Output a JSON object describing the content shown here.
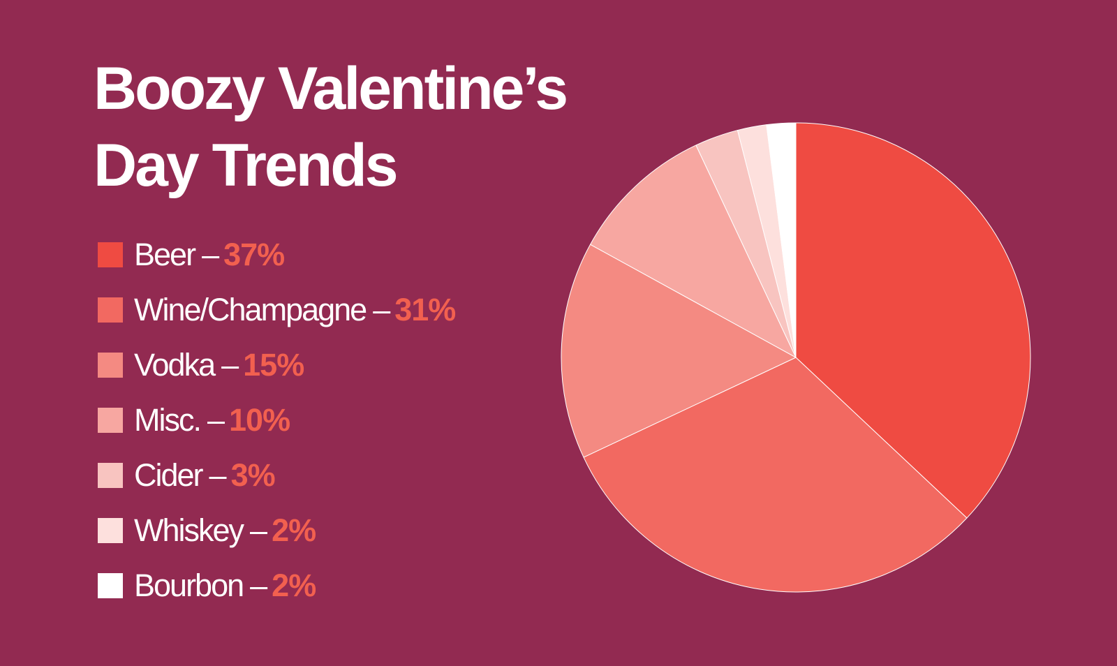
{
  "colors": {
    "background": "#922a51",
    "value_text": "#f2604f",
    "border": "#ffffff"
  },
  "chart_data": {
    "type": "pie",
    "title_lines": [
      "Boozy Valentine’s",
      "Day Trends"
    ],
    "legend_separator": "–",
    "legend_position": "left",
    "categories": [
      "Beer",
      "Wine/Champagne",
      "Vodka",
      "Misc.",
      "Cider",
      "Whiskey",
      "Bourbon"
    ],
    "values": [
      37,
      31,
      15,
      10,
      3,
      2,
      2
    ],
    "value_labels": [
      "37%",
      "31%",
      "15%",
      "10%",
      "3%",
      "2%",
      "2%"
    ],
    "unit": "%",
    "start_angle": "12 o'clock",
    "direction": "clockwise",
    "slice_colors": [
      "#ef4b42",
      "#f26961",
      "#f48a82",
      "#f7a7a1",
      "#f8c4c0",
      "#fde0dd",
      "#ffffff"
    ]
  }
}
